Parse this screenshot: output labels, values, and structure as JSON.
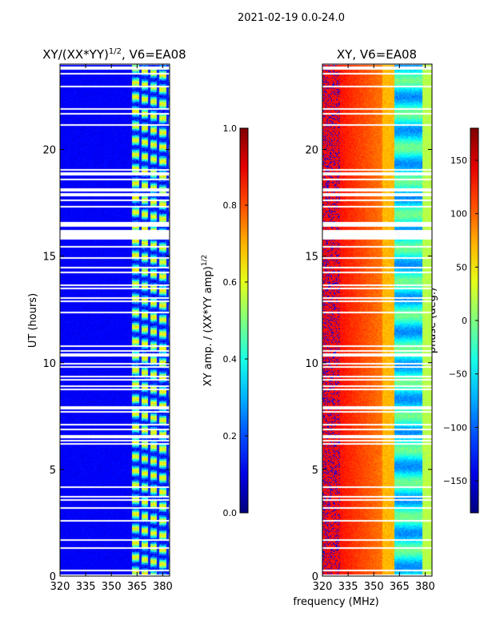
{
  "chart_data": [
    {
      "type": "heatmap",
      "title": "XY/(XX*YY)",
      "title_sup": "1/2",
      "title_suffix": ", V6=EA08",
      "xlabel": "",
      "ylabel": "UT (hours)",
      "xlim": [
        320,
        384
      ],
      "ylim": [
        0,
        24
      ],
      "xticks": [
        320,
        335,
        350,
        365,
        380
      ],
      "yticks": [
        0,
        5,
        10,
        15,
        20
      ],
      "colorbar": {
        "label": "XY amp. / (XX*YY amp)",
        "label_sup": "1/2",
        "range": [
          0.0,
          1.0
        ],
        "ticks": [
          "0.0",
          "0.2",
          "0.4",
          "0.6",
          "0.8",
          "1.0"
        ],
        "colormap": "jet"
      },
      "description_of_values": {
        "background_level": 0.1,
        "band_360_384_level": [
          0.3,
          0.7
        ]
      }
    },
    {
      "type": "heatmap",
      "title": "XY, V6=EA08",
      "xlabel": "frequency (MHz)",
      "xlim": [
        320,
        384
      ],
      "ylim": [
        0,
        24
      ],
      "xticks": [
        320,
        335,
        350,
        365,
        380
      ],
      "yticks": [
        0,
        5,
        10,
        15,
        20
      ],
      "colorbar": {
        "label": "phase (deg.)",
        "range": [
          -180,
          180
        ],
        "ticks": [
          "−150",
          "−100",
          "−50",
          "0",
          "50",
          "100",
          "150"
        ],
        "tick_values": [
          -150,
          -100,
          -50,
          0,
          50,
          100,
          150
        ],
        "colormap": "jet"
      }
    }
  ],
  "suptitle": "2021-02-19 0.0-24.0"
}
